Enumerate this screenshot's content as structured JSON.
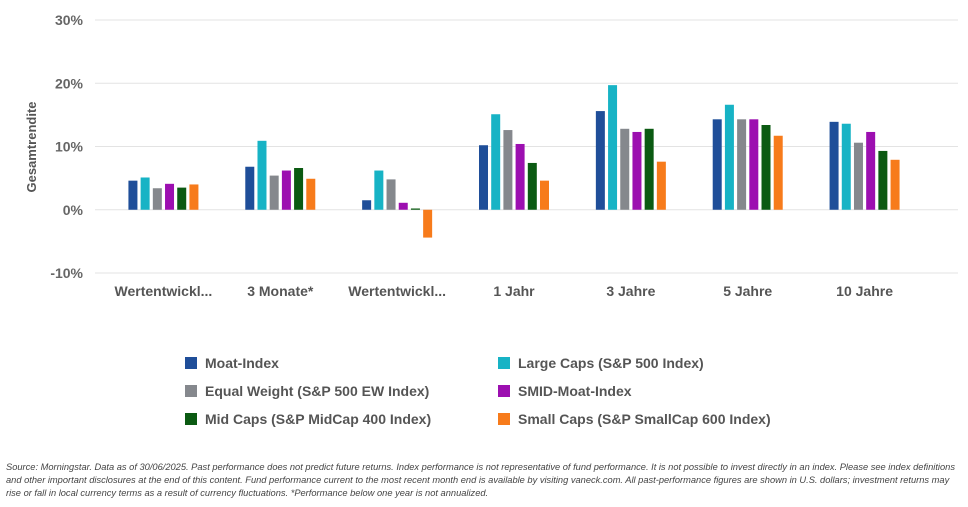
{
  "chart_data": {
    "type": "bar",
    "ylabel": "Gesamtrendite",
    "ylim": [
      -10,
      30
    ],
    "yticks": [
      "30%",
      "20%",
      "10%",
      "0%",
      "-10%"
    ],
    "ytick_values": [
      30,
      20,
      10,
      0,
      -10
    ],
    "grid": true,
    "legend_placement": "bottom",
    "categories": [
      "Wertentwickl...",
      "3 Monate*",
      "Wertentwickl...",
      "1 Jahr",
      "3 Jahre",
      "5 Jahre",
      "10 Jahre"
    ],
    "series": [
      {
        "name": "Moat-Index",
        "color": "#1f4e99",
        "values": [
          4.6,
          6.8,
          1.5,
          10.2,
          15.6,
          14.3,
          13.9
        ]
      },
      {
        "name": "Large Caps (S&P 500 Index)",
        "color": "#17b3c5",
        "values": [
          5.1,
          10.9,
          6.2,
          15.1,
          19.7,
          16.6,
          13.6
        ]
      },
      {
        "name": "Equal Weight (S&P 500 EW Index)",
        "color": "#85888d",
        "values": [
          3.4,
          5.4,
          4.8,
          12.6,
          12.8,
          14.3,
          10.6
        ]
      },
      {
        "name": "SMID-Moat-Index",
        "color": "#9c0fb0",
        "values": [
          4.1,
          6.2,
          1.1,
          10.4,
          12.3,
          14.3,
          12.3
        ]
      },
      {
        "name": "Mid Caps (S&P MidCap 400 Index)",
        "color": "#0b5a12",
        "values": [
          3.5,
          6.6,
          0.2,
          7.4,
          12.8,
          13.4,
          9.3
        ]
      },
      {
        "name": "Small Caps (S&P SmallCap 600 Index)",
        "color": "#f77b1b",
        "values": [
          4.0,
          4.9,
          -4.4,
          4.6,
          7.6,
          11.7,
          7.9
        ]
      }
    ]
  },
  "footnote": "Source: Morningstar. Data as of 30/06/2025. Past performance does not predict future returns. Index performance is not representative of fund performance. It is not possible to invest directly in an index. Please see index definitions and other important disclosures at the end of this content. Fund performance current to the most recent month end is available by visiting vaneck.com. All past-performance figures are shown in U.S. dollars; investment returns may rise or fall in local currency terms as a result of currency fluctuations. *Performance below one year is not annualized."
}
